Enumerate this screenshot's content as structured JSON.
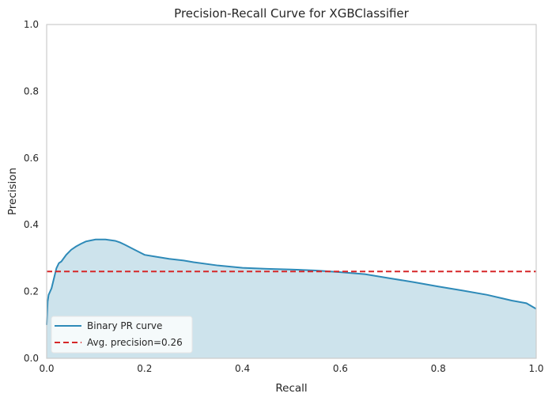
{
  "chart_data": {
    "type": "line",
    "title": "Precision-Recall Curve for XGBClassifier",
    "xlabel": "Recall",
    "ylabel": "Precision",
    "xlim": [
      0,
      1
    ],
    "ylim": [
      0,
      1
    ],
    "xticks": [
      "0.0",
      "0.2",
      "0.4",
      "0.6",
      "0.8",
      "1.0"
    ],
    "yticks": [
      "0.0",
      "0.2",
      "0.4",
      "0.6",
      "0.8",
      "1.0"
    ],
    "grid": false,
    "legend_position": "lower-left",
    "series": [
      {
        "name": "Binary PR curve",
        "style": "solid-with-fill",
        "color": "#2e8ab8",
        "fill_color": "#cde3ec",
        "x": [
          0.0,
          0.002,
          0.004,
          0.007,
          0.01,
          0.015,
          0.02,
          0.025,
          0.03,
          0.04,
          0.05,
          0.06,
          0.07,
          0.08,
          0.09,
          0.1,
          0.12,
          0.14,
          0.15,
          0.16,
          0.18,
          0.2,
          0.22,
          0.25,
          0.28,
          0.3,
          0.35,
          0.4,
          0.45,
          0.5,
          0.55,
          0.6,
          0.65,
          0.7,
          0.75,
          0.8,
          0.85,
          0.9,
          0.95,
          0.98,
          1.0
        ],
        "y": [
          0.1,
          0.17,
          0.19,
          0.2,
          0.21,
          0.24,
          0.27,
          0.285,
          0.29,
          0.31,
          0.325,
          0.335,
          0.343,
          0.35,
          0.353,
          0.356,
          0.356,
          0.352,
          0.347,
          0.34,
          0.325,
          0.31,
          0.305,
          0.298,
          0.293,
          0.288,
          0.278,
          0.271,
          0.268,
          0.266,
          0.263,
          0.258,
          0.252,
          0.24,
          0.228,
          0.215,
          0.203,
          0.19,
          0.173,
          0.165,
          0.148
        ]
      },
      {
        "name": "Avg. precision=0.26",
        "style": "dashed",
        "color": "#d62728",
        "x": [
          0,
          1
        ],
        "y": [
          0.26,
          0.26
        ]
      }
    ]
  }
}
